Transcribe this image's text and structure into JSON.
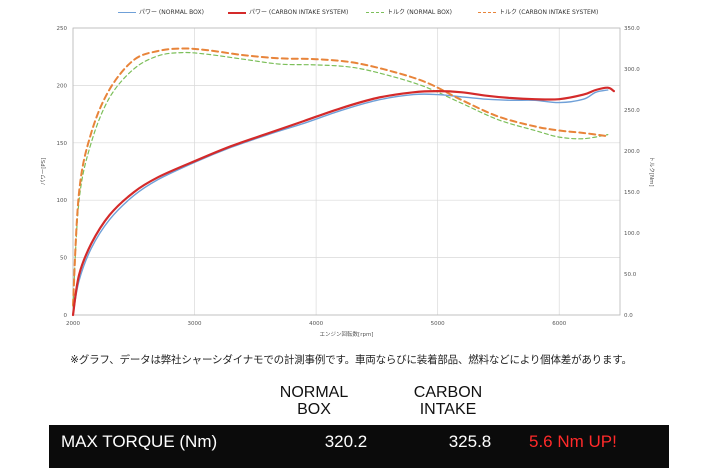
{
  "chart_data": {
    "type": "line",
    "xlabel": "エンジン回転数[rpm]",
    "ylabel_left": "パワー[PS]",
    "ylabel_right": "トルク[Nm]",
    "x_ticks": [
      "2000",
      "3000",
      "4000",
      "5000",
      "6000"
    ],
    "y_left_ticks": [
      "0",
      "50",
      "100",
      "150",
      "200",
      "250"
    ],
    "y_right_ticks": [
      "0.0",
      "50.0",
      "100.0",
      "150.0",
      "200.0",
      "250.0",
      "300.0",
      "350.0"
    ],
    "xlim": [
      2000,
      6500
    ],
    "ylim_left": [
      0,
      250
    ],
    "ylim_right": [
      0,
      350
    ],
    "grid": true,
    "legend_position": "top",
    "series": [
      {
        "name": "パワー (NORMAL BOX)",
        "axis": "left",
        "color": "#6fa0d8",
        "style": "solid",
        "x": [
          2000,
          2050,
          2150,
          2300,
          2500,
          2700,
          3000,
          3300,
          3600,
          3900,
          4200,
          4500,
          4800,
          5000,
          5200,
          5400,
          5600,
          5800,
          6000,
          6200,
          6300,
          6400
        ],
        "y": [
          0,
          30,
          58,
          83,
          104,
          118,
          133,
          146,
          157,
          167,
          178,
          187,
          192,
          192,
          190,
          188,
          187,
          187,
          185,
          188,
          194,
          196
        ]
      },
      {
        "name": "パワー (CARBON INTAKE SYSTEM)",
        "axis": "left",
        "color": "#d42a2a",
        "style": "solid",
        "x": [
          2000,
          2050,
          2150,
          2300,
          2500,
          2700,
          3000,
          3300,
          3600,
          3900,
          4200,
          4500,
          4800,
          5000,
          5200,
          5400,
          5600,
          5800,
          6000,
          6200,
          6300,
          6400,
          6450
        ],
        "y": [
          0,
          35,
          62,
          87,
          107,
          120,
          134,
          147,
          158,
          169,
          180,
          189,
          194,
          195,
          194,
          191,
          189,
          188,
          188,
          192,
          196,
          198,
          195
        ]
      },
      {
        "name": "トルク (NORMAL BOX)",
        "axis": "right",
        "color": "#7cbf5a",
        "style": "dashed",
        "x": [
          2000,
          2050,
          2150,
          2300,
          2500,
          2700,
          2900,
          3100,
          3400,
          3700,
          4000,
          4300,
          4600,
          4900,
          5200,
          5500,
          5800,
          6000,
          6200,
          6400
        ],
        "y": [
          10,
          140,
          210,
          265,
          300,
          316,
          320,
          318,
          312,
          306,
          305,
          302,
          292,
          278,
          258,
          238,
          225,
          217,
          215,
          220
        ]
      },
      {
        "name": "トルク (CARBON INTAKE SYSTEM)",
        "axis": "right",
        "color": "#e8843a",
        "style": "dashed",
        "x": [
          2000,
          2050,
          2150,
          2300,
          2500,
          2700,
          2900,
          3100,
          3400,
          3700,
          4000,
          4300,
          4600,
          4900,
          5200,
          5500,
          5800,
          6000,
          6200,
          6400
        ],
        "y": [
          12,
          150,
          222,
          275,
          311,
          322,
          325,
          323,
          317,
          313,
          312,
          308,
          298,
          284,
          262,
          242,
          230,
          225,
          222,
          218
        ]
      }
    ]
  },
  "note": "※グラフ、データは弊社シャーシダイナモでの計測事例です。車両ならびに装着部品、燃料などにより個体差があります。",
  "table": {
    "headers": {
      "normal": [
        "NORMAL",
        "BOX"
      ],
      "carbon": [
        "CARBON",
        "INTAKE"
      ]
    },
    "rows": [
      {
        "label": "MAX TORQUE (Nm)",
        "normal": "320.2",
        "carbon": "325.8",
        "up": "5.6 Nm UP!"
      }
    ]
  },
  "colors": {
    "table_background": "#0b0b0b",
    "highlight": "#ff2a2a"
  }
}
